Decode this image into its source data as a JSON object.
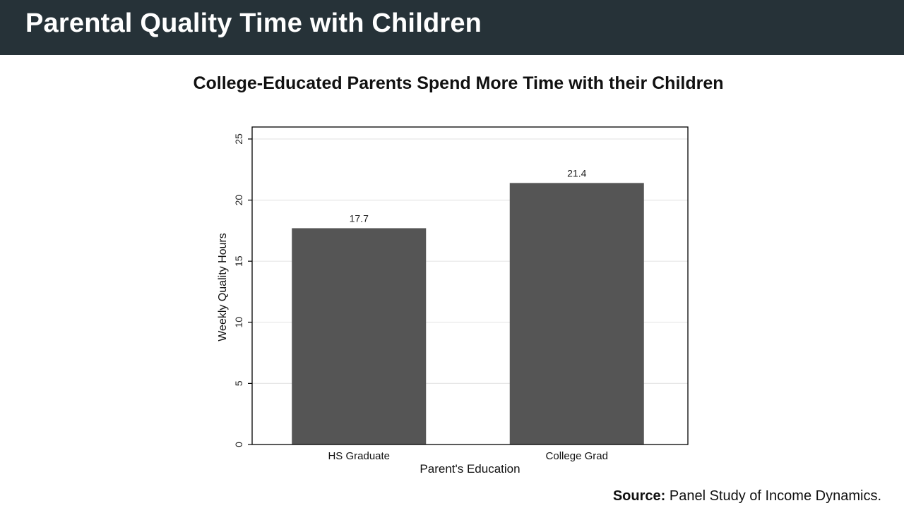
{
  "header": {
    "title": "Parental Quality Time with Children"
  },
  "footer": {
    "source_label": "Source:",
    "source_text": "Panel Study of Income Dynamics."
  },
  "colors": {
    "header_bg": "#263238",
    "bar": "#555555",
    "gridline": "#e6e6e6",
    "axis": "#000000"
  },
  "chart_data": {
    "type": "bar",
    "title": "College-Educated Parents Spend More Time with their Children",
    "xlabel": "Parent's Education",
    "ylabel": "Weekly Quality Hours",
    "categories": [
      "HS Graduate",
      "College Grad"
    ],
    "values": [
      17.7,
      21.4
    ],
    "data_labels": [
      "17.7",
      "21.4"
    ],
    "ylim": [
      0,
      25
    ],
    "yticks": [
      0,
      5,
      10,
      15,
      20,
      25
    ],
    "grid": true,
    "legend": "none"
  }
}
